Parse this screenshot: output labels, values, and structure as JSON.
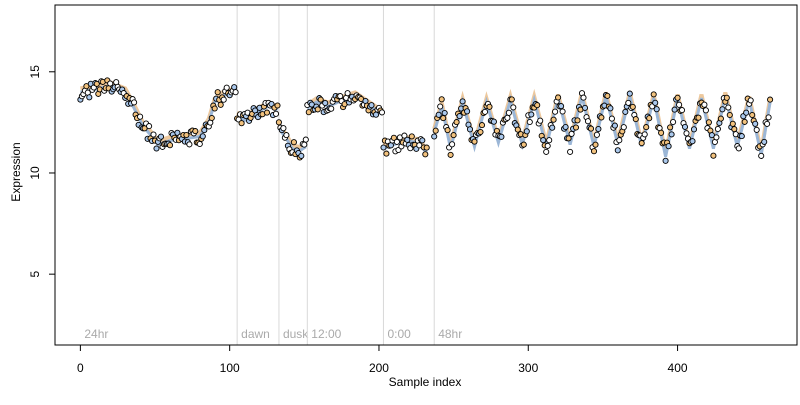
{
  "chart_data": {
    "type": "line",
    "xlabel": "Sample index",
    "ylabel": "Expression",
    "xlim": [
      -17,
      480
    ],
    "ylim": [
      1.5,
      18.3
    ],
    "x_ticks": [
      0,
      100,
      200,
      300,
      400
    ],
    "x_tick_labels": [
      "0",
      "100",
      "200",
      "300",
      "400"
    ],
    "y_ticks": [
      5,
      10,
      15
    ],
    "y_tick_labels": [
      "5",
      "10",
      "15"
    ],
    "grid": false,
    "legend": "none",
    "condition_markers": [
      {
        "x": 0,
        "label": "24hr",
        "line": false
      },
      {
        "x": 105,
        "label": "dawn",
        "line": true
      },
      {
        "x": 133,
        "label": "dusk",
        "line": true
      },
      {
        "x": 152,
        "label": "12:00",
        "line": true
      },
      {
        "x": 203,
        "label": "0:00",
        "line": true
      },
      {
        "x": 237,
        "label": "48hr",
        "line": true
      }
    ],
    "colors": {
      "fit_line": "#9bb6d6",
      "fit_band": "#e7b57c",
      "point_fill_a": "#f2c27e",
      "point_fill_b": "#aac8ec",
      "point_stroke": "#000000",
      "marker_line": "#d8d8d8",
      "marker_text": "#aaaaaa",
      "frame": "#000000"
    },
    "segments": [
      {
        "x": [
          0,
          8,
          20,
          30,
          36,
          42,
          48,
          52,
          60,
          70,
          80,
          86,
          90,
          95,
          104
        ],
        "y": [
          14.0,
          14.1,
          14.3,
          14.0,
          13.2,
          12.3,
          11.8,
          11.4,
          11.6,
          11.7,
          11.8,
          12.5,
          13.5,
          13.8,
          14.0
        ]
      },
      {
        "x": [
          105,
          110,
          118,
          126,
          132
        ],
        "y": [
          12.8,
          12.6,
          13.0,
          13.3,
          13.1
        ]
      },
      {
        "x": [
          133,
          138,
          142,
          147,
          151
        ],
        "y": [
          12.2,
          11.7,
          11.2,
          11.1,
          11.3
        ]
      },
      {
        "x": [
          152,
          158,
          166,
          176,
          184,
          190,
          196,
          202
        ],
        "y": [
          13.2,
          13.5,
          13.3,
          13.6,
          13.8,
          13.5,
          13.2,
          12.9
        ]
      },
      {
        "x": [
          203,
          210,
          218,
          226,
          232
        ],
        "y": [
          11.2,
          11.4,
          11.6,
          11.5,
          11.0
        ]
      },
      {
        "x": [
          237,
          242,
          248,
          256,
          264,
          272,
          280,
          288,
          296,
          304,
          312,
          320,
          328,
          336,
          344,
          352,
          360,
          368,
          376,
          384,
          392,
          400,
          408,
          416,
          424,
          432,
          440,
          448,
          456,
          462
        ],
        "y": [
          12.0,
          13.3,
          11.2,
          13.5,
          11.3,
          13.5,
          11.5,
          13.6,
          11.4,
          13.6,
          11.3,
          13.7,
          11.4,
          13.8,
          11.3,
          13.8,
          11.4,
          13.8,
          11.3,
          13.7,
          10.8,
          13.7,
          11.2,
          13.7,
          11.2,
          13.8,
          11.3,
          13.6,
          10.9,
          13.5
        ]
      }
    ]
  }
}
